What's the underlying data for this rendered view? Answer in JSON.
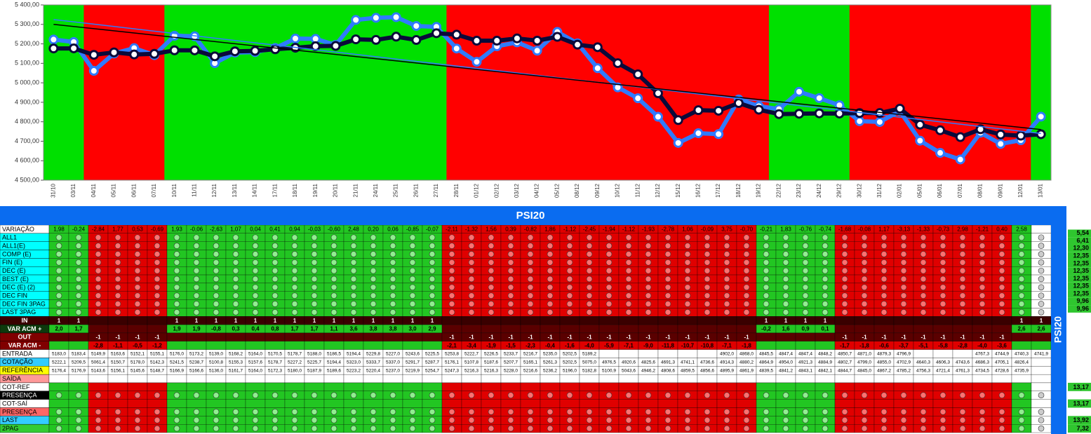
{
  "chart_data": {
    "type": "line",
    "x": [
      "31/10",
      "03/11",
      "04/11",
      "05/11",
      "06/11",
      "07/11",
      "10/11",
      "11/11",
      "12/11",
      "13/11",
      "14/11",
      "17/11",
      "18/11",
      "19/11",
      "20/11",
      "21/11",
      "24/11",
      "25/11",
      "26/11",
      "27/11",
      "28/11",
      "01/12",
      "02/12",
      "03/12",
      "04/12",
      "05/12",
      "08/12",
      "09/12",
      "10/12",
      "11/12",
      "12/12",
      "15/12",
      "16/12",
      "17/12",
      "18/12",
      "19/12",
      "22/12",
      "23/12",
      "24/12",
      "29/12",
      "30/12",
      "31/12",
      "02/01",
      "05/01",
      "06/01",
      "07/01",
      "08/01",
      "09/01",
      "12/01",
      "13/01"
    ],
    "background_colors": [
      "#00e000",
      "#00e000",
      "#ff0000",
      "#ff0000",
      "#ff0000",
      "#ff0000",
      "#00e000",
      "#00e000",
      "#00e000",
      "#00e000",
      "#00e000",
      "#00e000",
      "#00e000",
      "#00e000",
      "#00e000",
      "#00e000",
      "#00e000",
      "#00e000",
      "#00e000",
      "#00e000",
      "#ff0000",
      "#ff0000",
      "#ff0000",
      "#ff0000",
      "#ff0000",
      "#ff0000",
      "#ff0000",
      "#ff0000",
      "#ff0000",
      "#ff0000",
      "#ff0000",
      "#ff0000",
      "#ff0000",
      "#ff0000",
      "#ff0000",
      "#ff0000",
      "#00e000",
      "#00e000",
      "#00e000",
      "#00e000",
      "#ff0000",
      "#ff0000",
      "#ff0000",
      "#ff0000",
      "#ff0000",
      "#ff0000",
      "#ff0000",
      "#ff0000",
      "#ff0000",
      "#00e000"
    ],
    "ylim": [
      4500,
      5400
    ],
    "yticks": [
      {
        "value": 4500,
        "label": "4 500,00"
      },
      {
        "value": 4600,
        "label": "4 600,00"
      },
      {
        "value": 4700,
        "label": "4 700,00"
      },
      {
        "value": 4800,
        "label": "4 800,00"
      },
      {
        "value": 4900,
        "label": "4 900,00"
      },
      {
        "value": 5000,
        "label": "5 000,00"
      },
      {
        "value": 5100,
        "label": "5 100,00"
      },
      {
        "value": 5200,
        "label": "5 200,00"
      },
      {
        "value": 5300,
        "label": "5 300,00"
      },
      {
        "value": 5400,
        "label": "5 400,00"
      }
    ],
    "series": [
      {
        "color": "#2f7bff",
        "values": [
          5222.1,
          5209.5,
          5061.4,
          5150.7,
          5178.0,
          5142.3,
          5241.5,
          5238.7,
          5100.8,
          5155.3,
          5157.6,
          5178.7,
          5227.2,
          5225.7,
          5194.4,
          5323.0,
          5333.7,
          5337.0,
          5291.7,
          5287.7,
          5176.1,
          5107.8,
          5187.6,
          5207.7,
          5165.1,
          5261.3,
          5202.5,
          5075.0,
          4976.5,
          4920.6,
          4825.6,
          4691.3,
          4741.1,
          4736.6,
          4914.3,
          4880.2,
          4864.9,
          4954.0,
          4921.3,
          4884.9,
          4802.7,
          4799.0,
          4855.0,
          4702.9,
          4640.3,
          4606.3,
          4743.6,
          4686.3,
          4705.1,
          4826.4
        ]
      },
      {
        "color": "#0a0a3a",
        "values": [
          5176.4,
          5176.9,
          5143.6,
          5156.1,
          5145.6,
          5148.7,
          5166.9,
          5166.6,
          5136.0,
          5161.7,
          5164.0,
          5172.3,
          5180.0,
          5187.9,
          5189.6,
          5223.2,
          5220.4,
          5237.0,
          5219.9,
          5254.7,
          5247.3,
          5216.3,
          5216.3,
          5228.0,
          5216.6,
          5236.2,
          5196.0,
          5182.8,
          5100.9,
          5043.6,
          4946.2,
          4808.6,
          4859.5,
          4856.6,
          4895.9,
          4861.9,
          4839.5,
          4841.2,
          4843.1,
          4842.1,
          4844.7,
          4845.0,
          4867.2,
          4785.2,
          4756.3,
          4721.4,
          4761.3,
          4734.5,
          4728.6,
          4735.9
        ]
      }
    ],
    "trendlines": [
      {
        "color": "#2f7bff",
        "values": [
          5325,
          4740
        ]
      },
      {
        "color": "#000000",
        "values": [
          5300,
          4760
        ]
      }
    ]
  },
  "table": {
    "title": "PSI20",
    "side_title": "PSI20",
    "rows": [
      {
        "label": "VARIAÇÃO",
        "cells": [
          "1,98",
          "-0,24",
          "-2,84",
          "1,77",
          "0,53",
          "-0,69",
          "1,93",
          "-0,06",
          "-2,63",
          "1,07",
          "0,04",
          "0,41",
          "0,94",
          "-0,03",
          "-0,60",
          "2,48",
          "0,20",
          "0,06",
          "-0,85",
          "-0,07",
          "-2,11",
          "-1,32",
          "1,56",
          "0,39",
          "-0,82",
          "1,86",
          "-1,12",
          "-2,45",
          "-1,94",
          "-1,12",
          "-1,93",
          "-2,78",
          "1,06",
          "-0,09",
          "3,75",
          "-0,70",
          "-0,21",
          "1,83",
          "-0,76",
          "-0,74",
          "-1,68",
          "-0,08",
          "1,17",
          "-3,13",
          "-1,33",
          "-0,73",
          "2,98",
          "-1,21",
          "0,40",
          "2,58",
          null
        ]
      },
      {
        "label": "ALL1"
      },
      {
        "label": "ALL1(E)"
      },
      {
        "label": "COMP (E)"
      },
      {
        "label": "FIN (E)"
      },
      {
        "label": "DEC (E)"
      },
      {
        "label": "BEST (E)"
      },
      {
        "label": "DEC (E) (2)"
      },
      {
        "label": "DEC FIN"
      },
      {
        "label": "DEC FIN 3PAG"
      },
      {
        "label": "LAST 3PAG"
      },
      {
        "label": "IN",
        "cells": [
          "1",
          "1",
          null,
          null,
          null,
          null,
          "1",
          "1",
          "1",
          "1",
          "1",
          "1",
          "1",
          "1",
          "1",
          "1",
          "1",
          "1",
          "1",
          "1",
          null,
          null,
          null,
          null,
          null,
          null,
          null,
          null,
          null,
          null,
          null,
          null,
          null,
          null,
          null,
          null,
          "1",
          "1",
          "1",
          "1",
          null,
          null,
          null,
          null,
          null,
          null,
          null,
          null,
          null,
          "1",
          "1"
        ]
      },
      {
        "label": "VAR ACM +",
        "cells": [
          "2,0",
          "1,7",
          null,
          null,
          null,
          null,
          "1,9",
          "1,9",
          "-0,8",
          "0,3",
          "0,4",
          "0,8",
          "1,7",
          "1,7",
          "1,1",
          "3,6",
          "3,8",
          "3,8",
          "3,0",
          "2,9",
          null,
          null,
          null,
          null,
          null,
          null,
          null,
          null,
          null,
          null,
          null,
          null,
          null,
          null,
          null,
          null,
          "-0,2",
          "1,6",
          "0,9",
          "0,1",
          null,
          null,
          null,
          null,
          null,
          null,
          null,
          null,
          null,
          "2,6",
          "2,6"
        ]
      },
      {
        "label": "OUT",
        "cells": [
          null,
          null,
          "-1",
          "-1",
          "-1",
          "-1",
          null,
          null,
          null,
          null,
          null,
          null,
          null,
          null,
          null,
          null,
          null,
          null,
          null,
          null,
          "-1",
          "-1",
          "-1",
          "-1",
          "-1",
          "-1",
          "-1",
          "-1",
          "-1",
          "-1",
          "-1",
          "-1",
          "-1",
          "-1",
          "-1",
          "-1",
          null,
          null,
          null,
          null,
          "-1",
          "-1",
          "-1",
          "-1",
          "-1",
          "-1",
          "-1",
          "-1",
          "-1",
          null,
          null
        ]
      },
      {
        "label": "VAR ACM -",
        "cells": [
          null,
          null,
          "-2,8",
          "-1,1",
          "-0,5",
          "-1,2",
          null,
          null,
          null,
          null,
          null,
          null,
          null,
          null,
          null,
          null,
          null,
          null,
          null,
          null,
          "-2,1",
          "-3,4",
          "-1,9",
          "-1,5",
          "-2,3",
          "-0,4",
          "-1,6",
          "-4,0",
          "-5,9",
          "-7,1",
          "-9,0",
          "-11,8",
          "-10,7",
          "-10,8",
          "-7,1",
          "-1,8",
          null,
          null,
          null,
          null,
          "-1,7",
          "-1,8",
          "-0,6",
          "-3,7",
          "-5,1",
          "-5,8",
          "-2,8",
          "-4,0",
          "-3,6",
          null,
          null
        ]
      },
      {
        "label": "ENTRADA",
        "cells": [
          "5183,0",
          "5183,4",
          "5149,9",
          "5163,6",
          "5152,1",
          "5155,1",
          "5176,0",
          "5173,2",
          "5139,0",
          "5168,2",
          "5164,0",
          "5170,5",
          "5178,7",
          "5188,0",
          "5186,5",
          "5194,4",
          "5229,8",
          "5227,0",
          "5243,6",
          "5225,5",
          "5253,8",
          "5222,7",
          "5226,5",
          "5233,7",
          "5216,7",
          "5235,0",
          "5202,5",
          "5189,2",
          null,
          null,
          null,
          null,
          null,
          null,
          "4902,0",
          "4868,0",
          "4845,5",
          "4847,4",
          "4847,4",
          "4848,2",
          "4850,7",
          "4871,0",
          "4879,3",
          "4796,9",
          null,
          null,
          null,
          "4767,3",
          "4744,9",
          "4740,3",
          "4741,9"
        ]
      },
      {
        "label": "COTAÇÃO",
        "cells": [
          "5222,1",
          "5209,5",
          "5061,4",
          "5150,7",
          "5178,0",
          "5142,3",
          "5241,5",
          "5238,7",
          "5100,8",
          "5155,3",
          "5157,6",
          "5178,7",
          "5227,2",
          "5225,7",
          "5194,4",
          "5323,0",
          "5333,7",
          "5337,0",
          "5291,7",
          "5287,7",
          "5176,1",
          "5107,8",
          "5187,6",
          "5207,7",
          "5165,1",
          "5261,3",
          "5202,5",
          "5075,0",
          "4976,5",
          "4920,6",
          "4825,6",
          "4691,3",
          "4741,1",
          "4736,6",
          "4914,3",
          "4880,2",
          "4864,9",
          "4954,0",
          "4921,3",
          "4884,9",
          "4802,7",
          "4799,0",
          "4855,0",
          "4702,9",
          "4640,3",
          "4606,3",
          "4743,6",
          "4686,3",
          "4705,1",
          "4826,4",
          null
        ]
      },
      {
        "label": "REFERÊNCIA",
        "cells": [
          "5176,4",
          "5176,9",
          "5143,6",
          "5156,1",
          "5145,6",
          "5148,7",
          "5166,9",
          "5166,6",
          "5136,0",
          "5161,7",
          "5164,0",
          "5172,3",
          "5180,0",
          "5187,9",
          "5189,6",
          "5223,2",
          "5220,4",
          "5237,0",
          "5219,9",
          "5254,7",
          "5247,3",
          "5216,3",
          "5216,3",
          "5228,0",
          "5216,6",
          "5236,2",
          "5196,0",
          "5182,8",
          "5100,9",
          "5043,6",
          "4946,2",
          "4808,6",
          "4859,5",
          "4856,6",
          "4895,9",
          "4861,9",
          "4839,5",
          "4841,2",
          "4843,1",
          "4842,1",
          "4844,7",
          "4845,0",
          "4867,2",
          "4785,2",
          "4756,3",
          "4721,4",
          "4761,3",
          "4734,5",
          "4728,6",
          "4735,9",
          null
        ]
      },
      {
        "label": "SAÍDA"
      },
      {
        "label": "COT-REF"
      },
      {
        "label": "PRESENÇA"
      },
      {
        "label": "COT-SAÍ"
      },
      {
        "label": "PRESENÇA"
      },
      {
        "label": "LAST"
      },
      {
        "label": "2PAG"
      }
    ],
    "side_values_top": [
      "5,54",
      "6,41",
      "12,30",
      "12,35",
      "12,35",
      "12,35",
      "12,35",
      "12,35",
      "12,35",
      "9,96",
      "9,96"
    ],
    "side_values_bottom": [
      "13,17",
      "13,17",
      "13,92",
      "7,32"
    ]
  }
}
